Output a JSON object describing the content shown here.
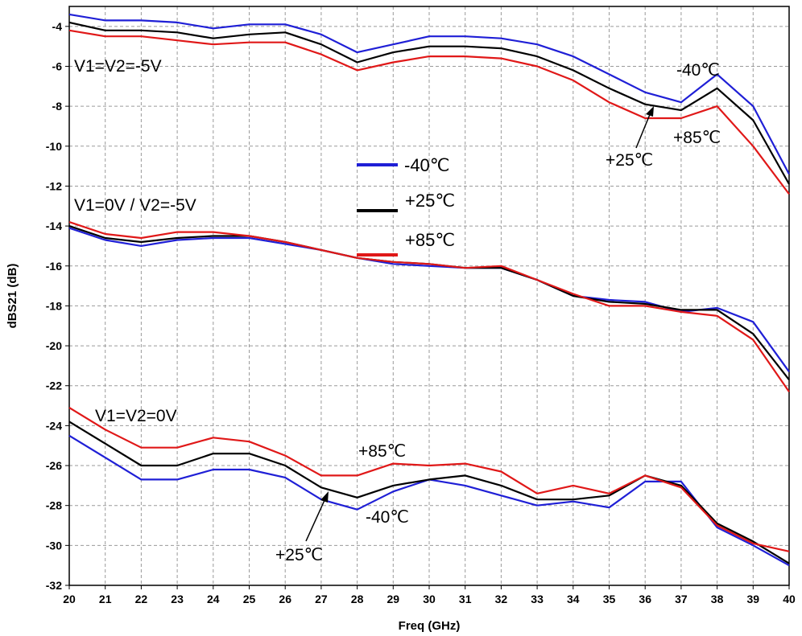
{
  "chart_data": {
    "type": "line",
    "xlabel": "Freq (GHz)",
    "ylabel": "dBS21 (dB)",
    "xlim": [
      20,
      40
    ],
    "ylim": [
      -32,
      -3
    ],
    "x_ticks": [
      20,
      21,
      22,
      23,
      24,
      25,
      26,
      27,
      28,
      29,
      30,
      31,
      32,
      33,
      34,
      35,
      36,
      37,
      38,
      39,
      40
    ],
    "x_tick_labels": [
      "20",
      "21",
      "22",
      "23",
      "24",
      "25",
      "26",
      "27",
      "28",
      "29",
      "30",
      "31",
      "32",
      "33",
      "34",
      "35",
      "36",
      "37",
      "38",
      "39",
      "40"
    ],
    "y_ticks": [
      -4,
      -6,
      -8,
      -10,
      -12,
      -14,
      -16,
      -18,
      -20,
      -22,
      -24,
      -26,
      -28,
      -30,
      -32
    ],
    "y_tick_labels": [
      "-4",
      "-6",
      "-8",
      "-10",
      "-12",
      "-14",
      "-16",
      "-18",
      "-20",
      "-22",
      "-24",
      "-26",
      "-28",
      "-30",
      "-32"
    ],
    "grid": true,
    "legend_position": "center",
    "legend": [
      {
        "label": "-40℃",
        "color": "#1f1fd6"
      },
      {
        "label": "+25℃",
        "color": "#000000"
      },
      {
        "label": "+85℃",
        "color": "#e01818"
      }
    ],
    "x": [
      20,
      21,
      22,
      23,
      24,
      25,
      26,
      27,
      28,
      29,
      30,
      31,
      32,
      33,
      34,
      35,
      36,
      37,
      38,
      39,
      40
    ],
    "groups": [
      {
        "label": "V1=V2=-5V",
        "series": [
          {
            "name": "-40℃",
            "color": "#1f1fd6",
            "values": [
              -3.4,
              -3.7,
              -3.7,
              -3.8,
              -4.1,
              -3.9,
              -3.9,
              -4.4,
              -5.3,
              -4.9,
              -4.5,
              -4.5,
              -4.6,
              -4.9,
              -5.5,
              -6.4,
              -7.3,
              -7.8,
              -6.4,
              -8.0,
              -11.4
            ]
          },
          {
            "name": "+25℃",
            "color": "#000000",
            "values": [
              -3.8,
              -4.2,
              -4.2,
              -4.3,
              -4.6,
              -4.4,
              -4.3,
              -4.9,
              -5.8,
              -5.3,
              -5.0,
              -5.0,
              -5.1,
              -5.5,
              -6.2,
              -7.1,
              -7.9,
              -8.2,
              -7.1,
              -8.7,
              -11.9
            ]
          },
          {
            "name": "+85℃",
            "color": "#e01818",
            "values": [
              -4.2,
              -4.5,
              -4.5,
              -4.7,
              -4.9,
              -4.8,
              -4.8,
              -5.4,
              -6.2,
              -5.8,
              -5.5,
              -5.5,
              -5.6,
              -6.0,
              -6.7,
              -7.8,
              -8.6,
              -8.6,
              -8.0,
              -10.0,
              -12.4
            ]
          }
        ]
      },
      {
        "label": "V1=0V / V2=-5V",
        "series": [
          {
            "name": "-40℃",
            "color": "#1f1fd6",
            "values": [
              -14.1,
              -14.7,
              -15.0,
              -14.7,
              -14.6,
              -14.6,
              -14.9,
              -15.2,
              -15.6,
              -15.9,
              -16.0,
              -16.1,
              -16.1,
              -16.7,
              -17.5,
              -17.7,
              -17.8,
              -18.3,
              -18.1,
              -18.8,
              -21.3
            ]
          },
          {
            "name": "+25℃",
            "color": "#000000",
            "values": [
              -14.0,
              -14.6,
              -14.8,
              -14.6,
              -14.5,
              -14.5,
              -14.8,
              -15.2,
              -15.6,
              -15.8,
              -15.9,
              -16.1,
              -16.1,
              -16.7,
              -17.5,
              -17.8,
              -17.9,
              -18.2,
              -18.2,
              -19.4,
              -21.7
            ]
          },
          {
            "name": "+85℃",
            "color": "#e01818",
            "values": [
              -13.8,
              -14.4,
              -14.6,
              -14.3,
              -14.3,
              -14.5,
              -14.8,
              -15.2,
              -15.6,
              -15.8,
              -15.9,
              -16.1,
              -16.0,
              -16.7,
              -17.4,
              -18.0,
              -18.0,
              -18.3,
              -18.5,
              -19.7,
              -22.3
            ]
          }
        ]
      },
      {
        "label": "V1=V2=0V",
        "series": [
          {
            "name": "-40℃",
            "color": "#1f1fd6",
            "values": [
              -24.5,
              -25.6,
              -26.7,
              -26.7,
              -26.2,
              -26.2,
              -26.6,
              -27.7,
              -28.2,
              -27.3,
              -26.7,
              -27.0,
              -27.5,
              -28.0,
              -27.8,
              -28.1,
              -26.8,
              -26.8,
              -29.1,
              -30.0,
              -31.0
            ]
          },
          {
            "name": "+25℃",
            "color": "#000000",
            "values": [
              -23.8,
              -24.9,
              -26.0,
              -26.0,
              -25.4,
              -25.4,
              -26.0,
              -27.1,
              -27.6,
              -27.0,
              -26.7,
              -26.5,
              -27.0,
              -27.7,
              -27.7,
              -27.5,
              -26.5,
              -27.0,
              -28.9,
              -29.8,
              -30.9
            ]
          },
          {
            "name": "+85℃",
            "color": "#e01818",
            "values": [
              -23.1,
              -24.2,
              -25.1,
              -25.1,
              -24.6,
              -24.8,
              -25.5,
              -26.5,
              -26.5,
              -25.9,
              -26.0,
              -25.9,
              -26.3,
              -27.4,
              -27.0,
              -27.4,
              -26.5,
              -27.1,
              -29.0,
              -29.9,
              -30.3
            ]
          }
        ]
      }
    ],
    "annotations": [
      {
        "text": "V1=V2=-5V"
      },
      {
        "text": "-40℃"
      },
      {
        "text": "+85℃"
      },
      {
        "text": "+25℃"
      },
      {
        "text": "V1=0V / V2=-5V"
      },
      {
        "text": "V1=V2=0V"
      },
      {
        "text": "+85℃"
      },
      {
        "text": "-40℃"
      },
      {
        "text": "+25℃"
      }
    ]
  }
}
